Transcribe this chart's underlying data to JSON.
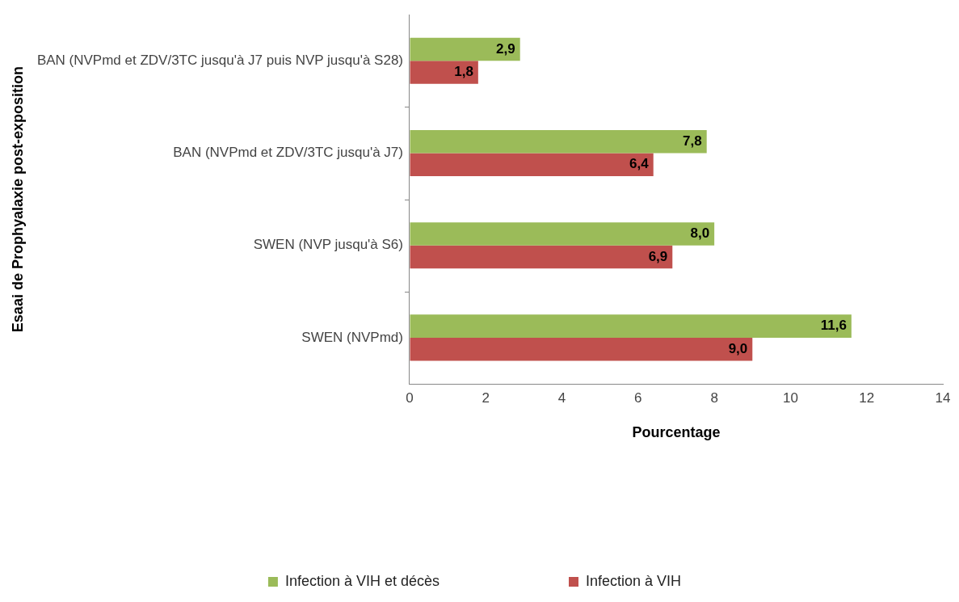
{
  "chart_data": {
    "type": "bar",
    "orientation": "horizontal",
    "xlabel": "Pourcentage",
    "ylabel": "Esaai de Prophyalaxie post-exposition",
    "categories": [
      "BAN (NVPmd et ZDV/3TC jusqu'à J7 puis NVP jusqu'à S28)",
      "BAN (NVPmd et ZDV/3TC jusqu'à J7)",
      "SWEN (NVP jusqu'à S6)",
      "SWEN (NVPmd)"
    ],
    "series": [
      {
        "name": "Infection à VIH et décès",
        "color": "#9bbb59",
        "values": [
          2.9,
          7.8,
          8.0,
          11.6
        ],
        "value_labels": [
          "2,9",
          "7,8",
          "8,0",
          "11,6"
        ]
      },
      {
        "name": "Infection à VIH",
        "color": "#c0504d",
        "values": [
          1.8,
          6.4,
          6.9,
          9.0
        ],
        "value_labels": [
          "1,8",
          "6,4",
          "6,9",
          "9,0"
        ]
      }
    ],
    "xlim": [
      0,
      14
    ],
    "xticks": [
      0,
      2,
      4,
      6,
      8,
      10,
      12,
      14
    ],
    "grid": false,
    "legend": "bottom"
  }
}
